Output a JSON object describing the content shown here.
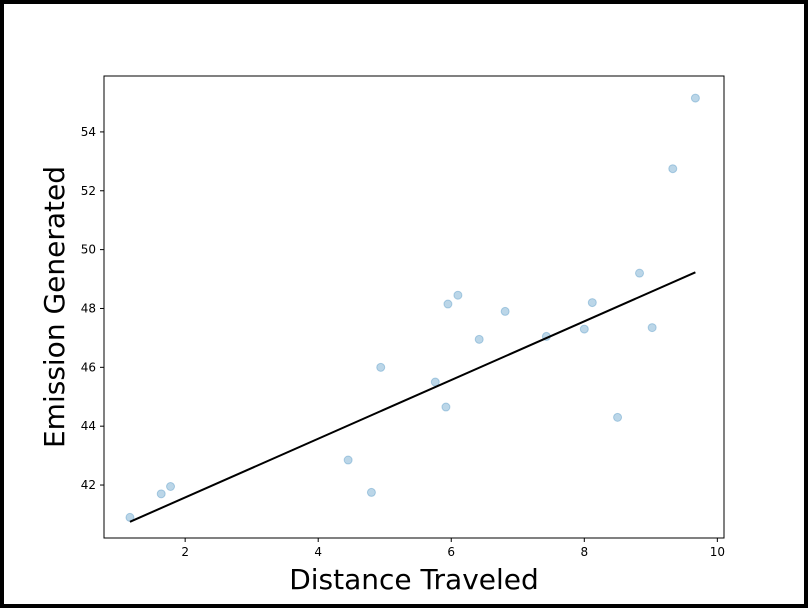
{
  "chart_data": {
    "type": "scatter",
    "title": "",
    "xlabel": "Distance Traveled",
    "ylabel": "Emission Generated",
    "xlim": [
      0.78,
      10.1
    ],
    "ylim": [
      40.2,
      55.9
    ],
    "xticks": [
      2,
      4,
      6,
      8,
      10
    ],
    "yticks": [
      42,
      44,
      46,
      48,
      50,
      52,
      54
    ],
    "grid": false,
    "points": {
      "color": "#1f77b4",
      "x": [
        1.17,
        1.64,
        1.78,
        4.45,
        4.8,
        4.94,
        5.76,
        5.92,
        5.95,
        6.1,
        6.42,
        6.81,
        7.43,
        8.0,
        8.12,
        8.5,
        8.83,
        9.02,
        9.33,
        9.67
      ],
      "y": [
        40.9,
        41.7,
        41.95,
        42.85,
        41.75,
        46.0,
        45.5,
        44.65,
        48.15,
        48.45,
        46.95,
        47.9,
        47.05,
        47.3,
        48.2,
        44.3,
        49.2,
        47.35,
        52.75,
        55.15
      ]
    },
    "fit_line": {
      "color": "#000000",
      "x": [
        1.17,
        9.67
      ],
      "y": [
        40.75,
        49.23
      ]
    }
  }
}
